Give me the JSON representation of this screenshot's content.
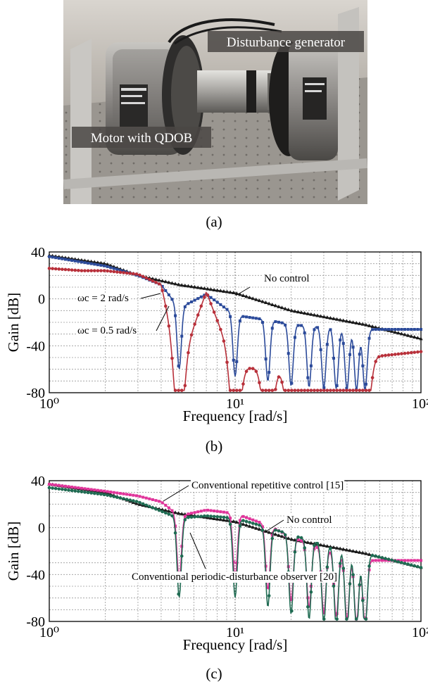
{
  "photo": {
    "labels": [
      "Disturbance generator",
      "Motor with QDOB"
    ]
  },
  "captions": {
    "a": "(a)",
    "b": "(b)",
    "c": "(c)"
  },
  "chart_data": [
    {
      "type": "line",
      "xscale": "log",
      "xlabel": "Frequency [rad/s]",
      "ylabel": "Gain [dB]",
      "xlim": [
        1,
        100
      ],
      "ylim": [
        -80,
        40
      ],
      "yticks": [
        "40",
        "0",
        "-40",
        "-80"
      ],
      "xticks": [
        "10⁰",
        "10¹",
        "10²"
      ],
      "grid": true,
      "notch_frequencies": [
        5,
        10,
        15,
        20,
        25,
        30,
        35,
        40,
        45,
        50
      ],
      "annotations": [
        {
          "text": "No control",
          "series": "No control"
        },
        {
          "text": "ωc = 2 rad/s",
          "series": "ωc = 2 rad/s"
        },
        {
          "text": "ωc = 0.5 rad/s",
          "series": "ωc = 0.5 rad/s"
        }
      ],
      "series": [
        {
          "name": "No control",
          "color": "#1a1a1a",
          "marker": "triangle",
          "x": [
            1,
            2,
            3,
            5,
            10,
            20,
            50,
            100
          ],
          "y": [
            37,
            30,
            20,
            12,
            5,
            -10,
            -22,
            -34
          ]
        },
        {
          "name": "ωc = 2 rad/s",
          "color": "#2b4a9a",
          "marker": "square",
          "x": [
            1,
            2,
            3,
            4,
            5,
            7,
            10,
            15,
            20,
            30,
            50
          ],
          "y": [
            36,
            28,
            20,
            12,
            -8,
            4,
            -14,
            -18,
            -22,
            -24,
            -26
          ]
        },
        {
          "name": "ωc = 0.5 rad/s",
          "color": "#b8303a",
          "marker": "circle",
          "x": [
            1,
            1.5,
            2,
            3,
            4,
            5,
            7,
            10,
            15,
            20,
            30,
            50,
            100
          ],
          "y": [
            26,
            24,
            24,
            21,
            12,
            -58,
            6,
            -58,
            -60,
            -62,
            -62,
            -50,
            -45
          ]
        }
      ]
    },
    {
      "type": "line",
      "xscale": "log",
      "xlabel": "Frequency [rad/s]",
      "ylabel": "Gain [dB]",
      "xlim": [
        1,
        100
      ],
      "ylim": [
        -80,
        40
      ],
      "yticks": [
        "40",
        "0",
        "-40",
        "-80"
      ],
      "xticks": [
        "10⁰",
        "10¹",
        "10²"
      ],
      "grid": true,
      "notch_frequencies": [
        5,
        10,
        15,
        20,
        25,
        30,
        35,
        40,
        45,
        50
      ],
      "annotations": [
        {
          "text": "Conventional repetitive control [15]",
          "series": "Conventional repetitive control [15]"
        },
        {
          "text": "No control",
          "series": "No control"
        },
        {
          "text": "Conventional periodic-disturbance observer [20]",
          "series": "Conventional periodic-disturbance observer [20]"
        }
      ],
      "series": [
        {
          "name": "No control",
          "color": "#1a1a1a",
          "marker": "triangle",
          "x": [
            1,
            2,
            3,
            5,
            10,
            20,
            50,
            100
          ],
          "y": [
            37,
            30,
            20,
            12,
            5,
            -10,
            -22,
            -34
          ]
        },
        {
          "name": "Conventional repetitive control [15]",
          "color": "#e0349a",
          "marker": "square",
          "x": [
            1,
            2,
            3,
            4,
            5,
            7,
            10,
            15,
            20,
            30,
            50
          ],
          "y": [
            37,
            31,
            27,
            22,
            10,
            15,
            12,
            2,
            -8,
            -18,
            -28
          ]
        },
        {
          "name": "Conventional periodic-disturbance observer [20]",
          "color": "#1f6b52",
          "marker": "circle",
          "x": [
            1,
            2,
            3,
            4,
            5,
            7,
            10,
            15,
            20,
            30,
            50,
            100
          ],
          "y": [
            34,
            28,
            22,
            14,
            8,
            10,
            8,
            0,
            -6,
            -14,
            -22,
            -34
          ]
        }
      ]
    }
  ]
}
